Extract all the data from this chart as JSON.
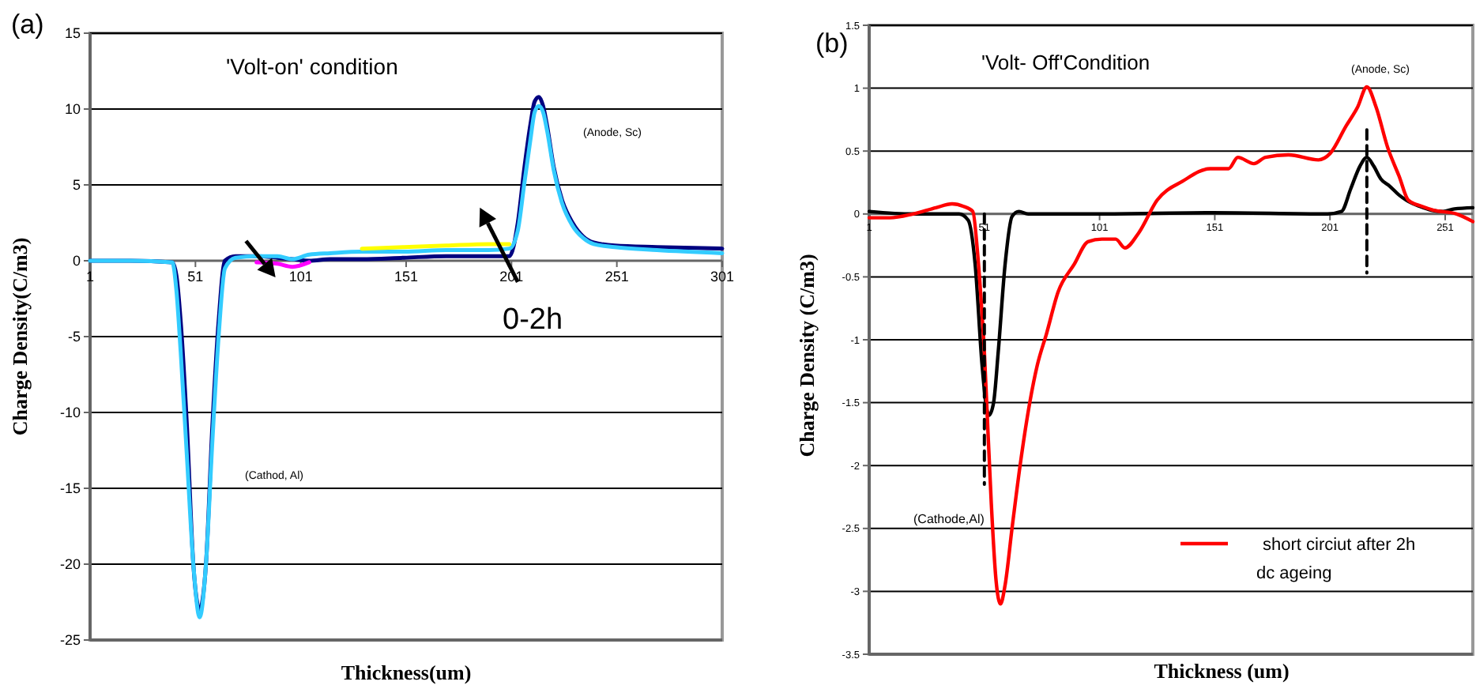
{
  "chart_data": [
    {
      "type": "line",
      "title": "'Volt-on' condition",
      "xlabel": "Thickness(um)",
      "ylabel": "Charge Density(C/m3)",
      "xlim": [
        1,
        301
      ],
      "xticks": [
        1,
        51,
        101,
        151,
        201,
        251,
        301
      ],
      "ylim": [
        -25,
        15
      ],
      "yticks": [
        -25,
        -20,
        -15,
        -10,
        -5,
        0,
        5,
        10,
        15
      ],
      "grid": "y",
      "annotations": [
        "(a)",
        "(Anode, Sc)",
        "(Cathod, Al)",
        "0-2h"
      ],
      "x": [
        1,
        20,
        40,
        42,
        44,
        47,
        50,
        53,
        56,
        59,
        62,
        65,
        70,
        80,
        90,
        97,
        105,
        115,
        130,
        150,
        170,
        190,
        200,
        204,
        207,
        210,
        212,
        214,
        216,
        218,
        221,
        225,
        230,
        235,
        240,
        250,
        270,
        301
      ],
      "series": [
        {
          "color": "#000080",
          "values": [
            0,
            0,
            -0.1,
            -1,
            -4,
            -11,
            -20,
            -23,
            -20,
            -11,
            -4,
            0,
            0.3,
            0.3,
            0.2,
            0.1,
            0,
            0.1,
            0.1,
            0.2,
            0.3,
            0.3,
            0.3,
            2.5,
            6,
            9,
            10.5,
            10.8,
            10.2,
            8.8,
            6.2,
            4,
            2.5,
            1.6,
            1.2,
            1,
            0.9,
            0.8
          ]
        },
        {
          "color": "#33ccff",
          "values": [
            0,
            0,
            -0.1,
            -2,
            -6,
            -13,
            -20,
            -23.5,
            -20,
            -12,
            -5,
            -0.5,
            0.2,
            0.3,
            0.3,
            0.1,
            0.4,
            0.5,
            0.6,
            0.6,
            0.7,
            0.7,
            0.8,
            2,
            5,
            8,
            9.8,
            10.2,
            9.8,
            8.5,
            6,
            3.8,
            2.3,
            1.5,
            1.1,
            0.9,
            0.7,
            0.5
          ]
        },
        {
          "color": "#ff00ff",
          "values": [
            null,
            null,
            null,
            null,
            null,
            null,
            null,
            null,
            null,
            null,
            null,
            null,
            null,
            -0.1,
            -0.2,
            -0.4,
            -0.1,
            null,
            null,
            null,
            null,
            null,
            null,
            null,
            null,
            null,
            null,
            null,
            null,
            null,
            null,
            null,
            null,
            null,
            null,
            null,
            null,
            null
          ]
        },
        {
          "color": "#ffff00",
          "values": [
            null,
            null,
            null,
            null,
            null,
            null,
            null,
            null,
            null,
            null,
            null,
            null,
            null,
            null,
            null,
            null,
            null,
            null,
            0.8,
            0.9,
            1,
            1.1,
            1.1,
            null,
            null,
            null,
            null,
            null,
            null,
            null,
            null,
            null,
            null,
            null,
            null,
            null,
            null,
            null
          ]
        }
      ]
    },
    {
      "type": "line",
      "title": "'Volt- Off'Condition",
      "xlabel": "Thickness (um)",
      "ylabel": "Charge Density (C/m3)",
      "xlim": [
        1,
        263
      ],
      "xticks": [
        1,
        51,
        101,
        151,
        201,
        251
      ],
      "ylim": [
        -3.5,
        1.5
      ],
      "yticks": [
        -3.5,
        -3,
        -2.5,
        -2,
        -1.5,
        -1,
        -0.5,
        0,
        0.5,
        1,
        1.5
      ],
      "grid": "y",
      "legend": "bottom right",
      "annotations": [
        "(b)",
        "(Anode, Sc)",
        "(Cathode,Al)"
      ],
      "series": [
        {
          "color": "#000000",
          "x": [
            1,
            20,
            40,
            44,
            47,
            50,
            52,
            53,
            55,
            57,
            60,
            63,
            66,
            70,
            100,
            150,
            200,
            206,
            210,
            214,
            217,
            220,
            223,
            227,
            231,
            235,
            240,
            245,
            250,
            255,
            263
          ],
          "values": [
            0.02,
            0,
            0,
            -0.05,
            -0.4,
            -1.2,
            -1.55,
            -1.6,
            -1.5,
            -1.1,
            -0.4,
            -0.02,
            0.02,
            0,
            0,
            0.01,
            0,
            0.02,
            0.2,
            0.38,
            0.45,
            0.38,
            0.28,
            0.22,
            0.15,
            0.1,
            0.06,
            0.03,
            0.02,
            0.04,
            0.05
          ]
        },
        {
          "name": "short circiut after 2h dc ageing",
          "color": "#ff0000",
          "x": [
            1,
            10,
            20,
            30,
            37,
            42,
            46,
            48,
            50,
            51,
            52,
            54,
            56,
            58,
            60,
            63,
            66.5,
            70.7,
            74,
            78,
            83,
            90,
            96,
            102,
            108,
            112,
            118,
            126,
            137,
            149,
            157,
            161,
            168,
            173,
            183,
            196,
            201,
            208,
            213,
            217,
            221,
            226,
            231,
            235,
            241,
            246,
            256,
            263
          ],
          "values": [
            -0.03,
            -0.03,
            0,
            0.05,
            0.08,
            0.06,
            0.02,
            -0.3,
            -0.8,
            -1.1,
            -1.5,
            -2.3,
            -2.9,
            -3.1,
            -2.95,
            -2.5,
            -2,
            -1.5,
            -1.2,
            -0.95,
            -0.62,
            -0.4,
            -0.22,
            -0.2,
            -0.2,
            -0.27,
            -0.15,
            0.11,
            0.26,
            0.36,
            0.36,
            0.45,
            0.4,
            0.45,
            0.47,
            0.43,
            0.48,
            0.7,
            0.85,
            1.01,
            0.85,
            0.53,
            0.3,
            0.11,
            0.06,
            0.03,
            0,
            -0.06
          ]
        },
        {
          "color": "#000000",
          "line_style": "dashed",
          "x": [
            51,
            51
          ],
          "values": [
            0,
            -2.15
          ]
        },
        {
          "color": "#000000",
          "line_style": "dashed",
          "x": [
            217,
            217
          ],
          "values": [
            0.67,
            -0.47
          ]
        }
      ]
    }
  ]
}
